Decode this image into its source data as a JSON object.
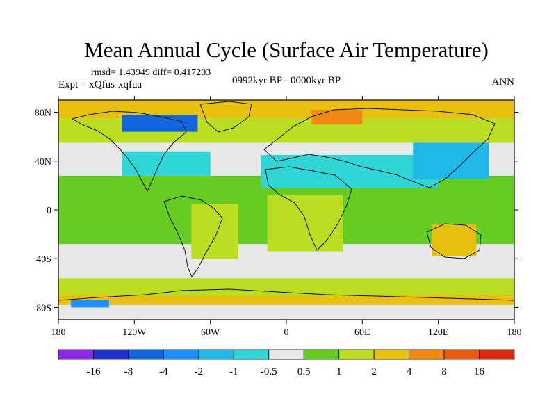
{
  "chart_data": {
    "type": "heatmap",
    "title": "Mean Annual Cycle (Surface Air Temperature)",
    "stats_line": "rmsd= 1.43949 diff= 0.417203",
    "experiment": "Expt = xQfus-xqfua",
    "period": "0992kyr BP - 0000kyr BP",
    "season": "ANN",
    "projection": "cylindrical equidistant",
    "xlim": [
      -180,
      180
    ],
    "ylim": [
      -90,
      90
    ],
    "x_ticks": [
      {
        "value": -180,
        "label": "180"
      },
      {
        "value": -120,
        "label": "120W"
      },
      {
        "value": -60,
        "label": "60W"
      },
      {
        "value": 0,
        "label": "0"
      },
      {
        "value": 60,
        "label": "60E"
      },
      {
        "value": 120,
        "label": "120E"
      },
      {
        "value": 180,
        "label": "180"
      }
    ],
    "y_ticks": [
      {
        "value": 80,
        "label": "80N"
      },
      {
        "value": 40,
        "label": "40N"
      },
      {
        "value": 0,
        "label": "0"
      },
      {
        "value": -40,
        "label": "40S"
      },
      {
        "value": -80,
        "label": "80S"
      }
    ],
    "levels": [
      {
        "label": "-16",
        "value": -16
      },
      {
        "label": "-8",
        "value": -8
      },
      {
        "label": "-4",
        "value": -4
      },
      {
        "label": "-2",
        "value": -2
      },
      {
        "label": "-1",
        "value": -1
      },
      {
        "label": "-0.5",
        "value": -0.5
      },
      {
        "label": "0.5",
        "value": 0.5
      },
      {
        "label": "1",
        "value": 1
      },
      {
        "label": "2",
        "value": 2
      },
      {
        "label": "4",
        "value": 4
      },
      {
        "label": "8",
        "value": 8
      },
      {
        "label": "16",
        "value": 16
      }
    ],
    "colors": [
      "#8a2be2",
      "#2233cc",
      "#1166dd",
      "#1e90ff",
      "#20b8e8",
      "#30d6d6",
      "#e8e8e8",
      "#66cc22",
      "#bbdd22",
      "#e8c010",
      "#f08a10",
      "#e85a10",
      "#dd2a10"
    ],
    "regions": [
      {
        "name": "tropical-band",
        "lon": [
          -180,
          180
        ],
        "lat": [
          -28,
          28
        ],
        "value": 0.7
      },
      {
        "name": "northern-midlatitudes",
        "lon": [
          -180,
          180
        ],
        "lat": [
          55,
          75
        ],
        "value": 1.5
      },
      {
        "name": "arctic",
        "lon": [
          -180,
          180
        ],
        "lat": [
          75,
          90
        ],
        "value": 3.0
      },
      {
        "name": "southern-ocean",
        "lon": [
          -180,
          180
        ],
        "lat": [
          -70,
          -56
        ],
        "value": 1.5
      },
      {
        "name": "antarctic-coast",
        "lon": [
          -180,
          180
        ],
        "lat": [
          -78,
          -70
        ],
        "value": 3.0
      },
      {
        "name": "north-america-cooling",
        "lon": [
          -130,
          -60
        ],
        "lat": [
          28,
          48
        ],
        "value": -0.8
      },
      {
        "name": "eurasia-cooling",
        "lon": [
          -20,
          120
        ],
        "lat": [
          18,
          45
        ],
        "value": -0.8
      },
      {
        "name": "east-asia-cooling",
        "lon": [
          100,
          160
        ],
        "lat": [
          25,
          55
        ],
        "value": -1.2
      },
      {
        "name": "canadian-arctic",
        "lon": [
          -130,
          -70
        ],
        "lat": [
          64,
          78
        ],
        "value": -4.5
      },
      {
        "name": "south-america",
        "lon": [
          -75,
          -38
        ],
        "lat": [
          -40,
          5
        ],
        "value": 1.8
      },
      {
        "name": "africa",
        "lon": [
          -15,
          45
        ],
        "lat": [
          -34,
          12
        ],
        "value": 1.8
      },
      {
        "name": "australia",
        "lon": [
          115,
          150
        ],
        "lat": [
          -38,
          -12
        ],
        "value": 2.5
      },
      {
        "name": "barents-kara-warming",
        "lon": [
          20,
          60
        ],
        "lat": [
          70,
          82
        ],
        "value": 5.0
      },
      {
        "name": "ross-sea-cooling",
        "lon": [
          -170,
          -140
        ],
        "lat": [
          -80,
          -74
        ],
        "value": -3.0
      }
    ]
  }
}
